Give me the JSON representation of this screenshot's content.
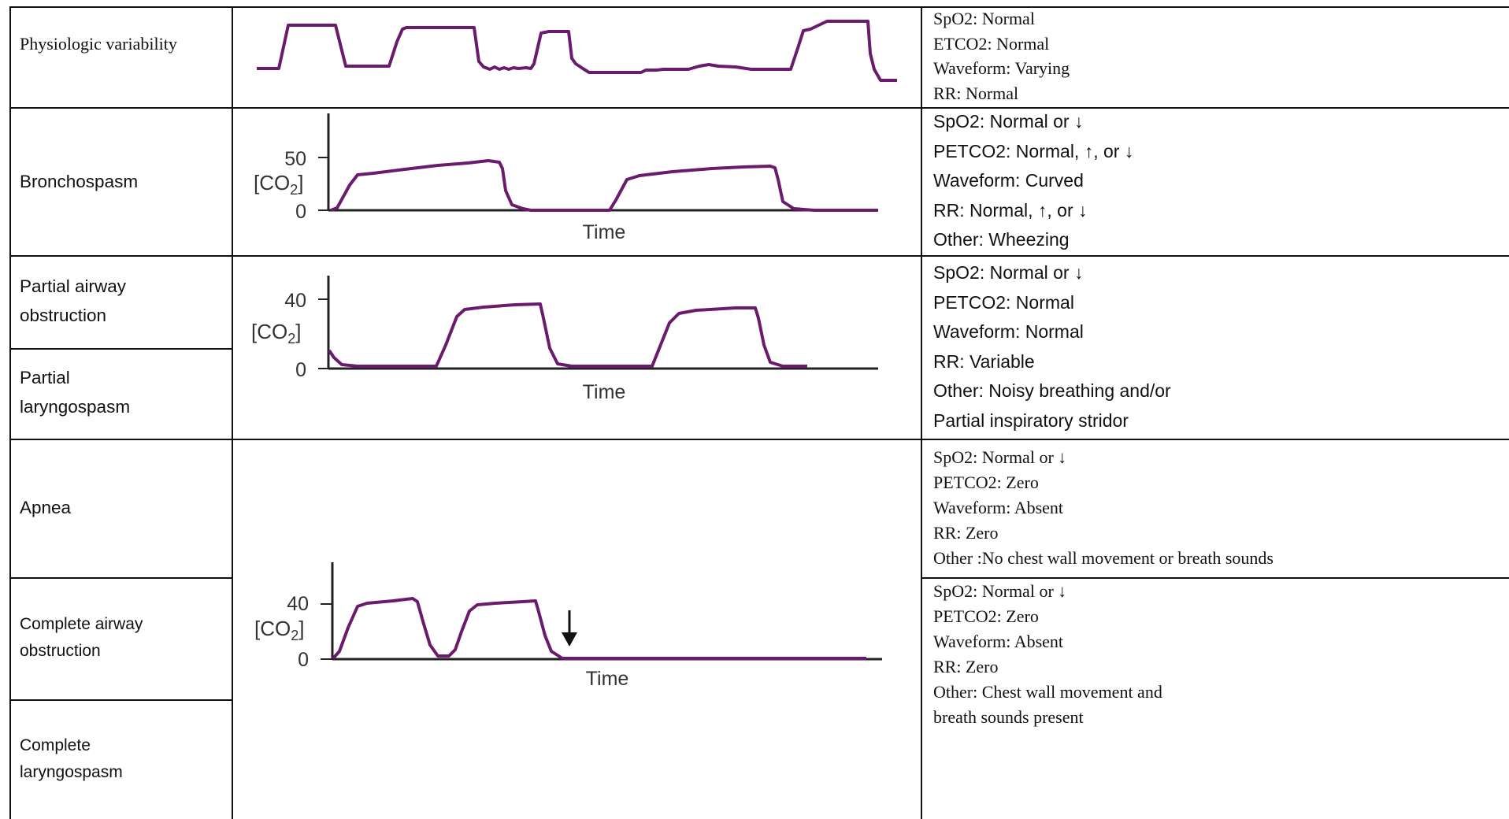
{
  "colors": {
    "trace": "#6a1b6e",
    "grid_line": "#111111",
    "text": "#111111"
  },
  "rows": {
    "physiologic": {
      "condition": "Physiologic variability",
      "details": [
        "SpO2: Normal",
        "ETCO2: Normal",
        "Waveform: Varying",
        "RR: Normal"
      ]
    },
    "bronchospasm": {
      "condition": "Bronchospasm",
      "details": [
        "SpO2: Normal or ↓",
        "PETCO2: Normal, ↑, or ↓",
        "Waveform: Curved",
        "RR: Normal, ↑, or ↓",
        "Other: Wheezing"
      ],
      "chart": {
        "y_tick_top": "50",
        "y_tick_zero": "0",
        "ylabel": "[CO2]",
        "xlabel": "Time"
      }
    },
    "partial": {
      "condition_a": "Partial airway obstruction",
      "condition_b": "Partial laryngospasm",
      "details": [
        "SpO2: Normal or ↓",
        "PETCO2: Normal",
        "Waveform: Normal",
        "RR: Variable",
        "Other: Noisy breathing and/or",
        "Partial inspiratory stridor"
      ],
      "chart": {
        "y_tick_top": "40",
        "y_tick_zero": "0",
        "ylabel": "[CO2]",
        "xlabel": "Time"
      }
    },
    "apnea": {
      "condition": "Apnea",
      "details": [
        "SpO2: Normal or  ↓",
        "PETCO2: Zero",
        "Waveform:  Absent",
        "RR: Zero",
        "Other :No chest wall movement or breath sounds"
      ]
    },
    "complete": {
      "condition_a": "Complete airway obstruction",
      "condition_b": "Complete laryngospasm",
      "details": [
        "SpO2: Normal or  ↓",
        "PETCO2: Zero",
        "Waveform: Absent",
        "RR: Zero",
        "Other: Chest wall movement and",
        "breath sounds present"
      ],
      "chart": {
        "y_tick_top": "40",
        "y_tick_zero": "0",
        "ylabel": "[CO2]",
        "xlabel": "Time"
      }
    }
  }
}
